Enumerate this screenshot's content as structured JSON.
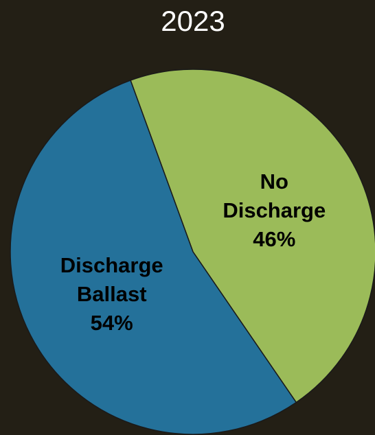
{
  "chart_data": {
    "type": "pie",
    "title": "2023",
    "slices": [
      {
        "label_lines": [
          "No",
          "Discharge"
        ],
        "percent_label": "46%",
        "value": 46,
        "color": "#9bbb59"
      },
      {
        "label_lines": [
          "Discharge",
          "Ballast"
        ],
        "percent_label": "54%",
        "value": 54,
        "color": "#24719a"
      }
    ],
    "start_angle_deg": -20,
    "direction": "clockwise"
  },
  "colors": {
    "background": "#231f15",
    "slice_border": "#1a1a1a"
  }
}
